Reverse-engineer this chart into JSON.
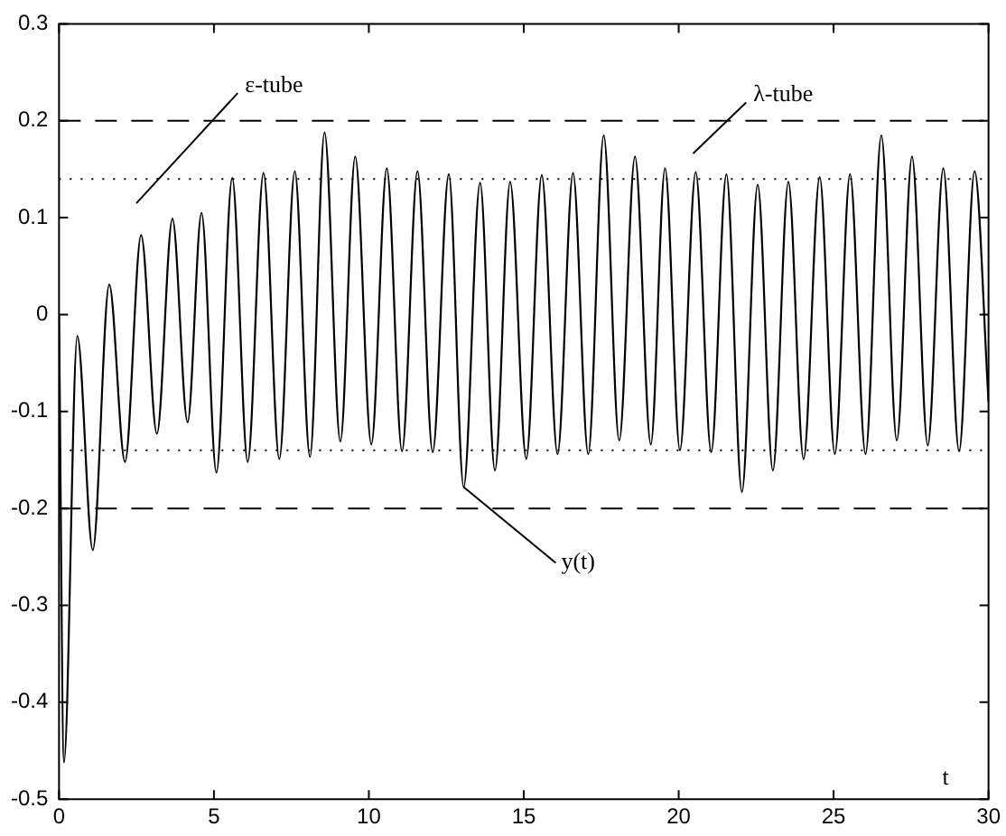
{
  "chart_data": {
    "type": "line",
    "xlabel": "t",
    "x": [
      0,
      0.16,
      0.59,
      1.09,
      1.62,
      2.13,
      2.65,
      3.16,
      3.66,
      4.15,
      4.6,
      5.08,
      5.59,
      6.09,
      6.6,
      7.11,
      7.61,
      8.1,
      8.57,
      9.08,
      9.56,
      10.08,
      10.58,
      11.07,
      11.57,
      12.06,
      12.58,
      13.06,
      13.59,
      14.07,
      14.56,
      15.08,
      15.58,
      16.09,
      16.59,
      17.08,
      17.58,
      18.08,
      18.59,
      19.1,
      19.56,
      20.04,
      20.55,
      21.05,
      21.54,
      22.04,
      22.55,
      23.04,
      23.54,
      24.03,
      24.55,
      25.04,
      25.53,
      26.03,
      26.54,
      27.04,
      27.53,
      28.04,
      28.54,
      29.05,
      29.55,
      30
    ],
    "series": [
      {
        "color": "#000000",
        "values": [
          0,
          -0.462,
          -0.022,
          -0.243,
          0.031,
          -0.152,
          0.082,
          -0.123,
          0.099,
          -0.111,
          0.105,
          -0.163,
          0.141,
          -0.152,
          0.146,
          -0.149,
          0.148,
          -0.147,
          0.188,
          -0.131,
          0.163,
          -0.134,
          0.151,
          -0.141,
          0.148,
          -0.142,
          0.145,
          -0.178,
          0.136,
          -0.161,
          0.137,
          -0.149,
          0.144,
          -0.144,
          0.146,
          -0.144,
          0.185,
          -0.13,
          0.163,
          -0.134,
          0.151,
          -0.14,
          0.147,
          -0.142,
          0.145,
          -0.183,
          0.134,
          -0.161,
          0.137,
          -0.149,
          0.142,
          -0.144,
          0.145,
          -0.144,
          0.185,
          -0.13,
          0.163,
          -0.135,
          0.151,
          -0.141,
          0.148,
          -0.09
        ]
      }
    ],
    "xlim": [
      0,
      30
    ],
    "xticks": [
      0,
      5,
      10,
      15,
      20,
      25,
      30
    ],
    "ylim": [
      -0.5,
      0.3
    ],
    "yticks": [
      -0.5,
      -0.4,
      -0.3,
      -0.2,
      -0.1,
      0,
      0.1,
      0.2,
      0.3
    ],
    "grid": false,
    "legend": false,
    "marker": "none",
    "line_style": "solid",
    "ref_lines": [
      {
        "axis": "y",
        "value": 0.2,
        "color": "#000000",
        "line_style": "dashed"
      },
      {
        "axis": "y",
        "value": -0.2,
        "color": "#000000",
        "line_style": "dashed"
      },
      {
        "axis": "y",
        "value": 0.14,
        "color": "#000000",
        "line_style": "dotted"
      },
      {
        "axis": "y",
        "value": -0.14,
        "color": "#000000",
        "line_style": "dotted"
      }
    ],
    "annotations": [
      "ε-tube",
      "λ-tube",
      {
        "text": "y(t)",
        "x": 13.06,
        "y": -0.178
      }
    ]
  }
}
